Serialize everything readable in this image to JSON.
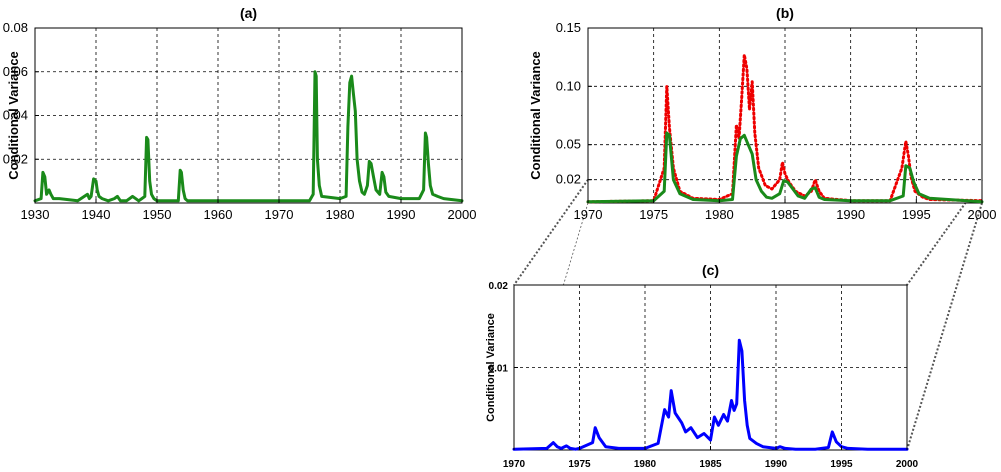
{
  "colors": {
    "green": "#1a8a1a",
    "red": "#ee0000",
    "blue": "#0000ff",
    "zoom": "#555555"
  },
  "chart_data": [
    {
      "id": "a",
      "type": "line",
      "title": "(a)",
      "ylabel": "Conditional Variance",
      "xlim": [
        1930,
        2000
      ],
      "ylim": [
        0,
        0.08
      ],
      "xticks": [
        "1930",
        "1940",
        "1950",
        "1960",
        "1970",
        "1980",
        "1990",
        "2000"
      ],
      "yticks": [
        "0.02",
        "0.04",
        "0.06",
        "0.08"
      ],
      "grid": true,
      "series": [
        {
          "color": "#1a8a1a",
          "x": [
            1930,
            1931,
            1931.3,
            1931.6,
            1931.9,
            1932.3,
            1932.6,
            1933,
            1934,
            1937,
            1938.6,
            1938.9,
            1939.2,
            1939.6,
            1940,
            1940.2,
            1940.5,
            1941,
            1942,
            1943,
            1943.5,
            1944,
            1945,
            1946,
            1946.5,
            1947,
            1947.5,
            1948,
            1948.3,
            1948.5,
            1948.8,
            1949.1,
            1949.5,
            1950,
            1953.5,
            1953.8,
            1954,
            1954.3,
            1954.6,
            1955,
            1960,
            1965,
            1970,
            1975,
            1975.6,
            1975.9,
            1976.1,
            1976.3,
            1976.6,
            1977,
            1980,
            1981,
            1981.3,
            1981.6,
            1981.9,
            1982.2,
            1982.5,
            1982.8,
            1983.2,
            1983.6,
            1984,
            1984.5,
            1984.8,
            1985.1,
            1985.5,
            1985.9,
            1986.5,
            1986.9,
            1987.2,
            1987.5,
            1988,
            1990,
            1993,
            1993.7,
            1994,
            1994.2,
            1994.5,
            1994.8,
            1995.2,
            1996,
            1997,
            2000
          ],
          "y": [
            0.001,
            0.002,
            0.014,
            0.012,
            0.004,
            0.006,
            0.004,
            0.002,
            0.002,
            0.001,
            0.004,
            0.002,
            0.003,
            0.011,
            0.01,
            0.006,
            0.003,
            0.002,
            0.001,
            0.002,
            0.003,
            0.001,
            0.001,
            0.003,
            0.002,
            0.001,
            0.002,
            0.003,
            0.03,
            0.029,
            0.01,
            0.004,
            0.002,
            0.001,
            0.001,
            0.015,
            0.014,
            0.006,
            0.002,
            0.001,
            0.001,
            0.001,
            0.001,
            0.001,
            0.004,
            0.06,
            0.058,
            0.02,
            0.008,
            0.003,
            0.002,
            0.003,
            0.035,
            0.055,
            0.058,
            0.05,
            0.042,
            0.02,
            0.01,
            0.005,
            0.004,
            0.008,
            0.019,
            0.018,
            0.012,
            0.006,
            0.004,
            0.014,
            0.012,
            0.005,
            0.003,
            0.002,
            0.002,
            0.006,
            0.032,
            0.03,
            0.018,
            0.008,
            0.004,
            0.003,
            0.002,
            0.001
          ]
        }
      ]
    },
    {
      "id": "b",
      "type": "line",
      "title": "(b)",
      "ylabel": "Conditional Variance",
      "xlim": [
        1970,
        2000
      ],
      "ylim": [
        0,
        0.15
      ],
      "xticks": [
        "1970",
        "1975",
        "1980",
        "1985",
        "1990",
        "1995",
        "2000"
      ],
      "yticks": [
        "0.02",
        "0.05",
        "0.10",
        "0.15"
      ],
      "grid": true,
      "series": [
        {
          "color": "#ee0000",
          "style": "dotted",
          "x": [
            1970,
            1975,
            1975.8,
            1976,
            1976.2,
            1976.5,
            1977,
            1978,
            1980,
            1981,
            1981.3,
            1981.5,
            1981.7,
            1981.9,
            1982.1,
            1982.3,
            1982.5,
            1982.7,
            1983,
            1983.5,
            1984,
            1984.6,
            1984.8,
            1985,
            1985.3,
            1985.8,
            1986.5,
            1987,
            1987.3,
            1987.6,
            1988,
            1990,
            1993,
            1993.9,
            1994.2,
            1994.4,
            1994.6,
            1994.9,
            1995.5,
            1996,
            2000
          ],
          "y": [
            0.001,
            0.002,
            0.03,
            0.1,
            0.065,
            0.03,
            0.01,
            0.004,
            0.003,
            0.008,
            0.067,
            0.055,
            0.09,
            0.127,
            0.115,
            0.08,
            0.104,
            0.06,
            0.03,
            0.015,
            0.012,
            0.02,
            0.035,
            0.025,
            0.018,
            0.01,
            0.006,
            0.01,
            0.02,
            0.01,
            0.004,
            0.002,
            0.002,
            0.03,
            0.053,
            0.04,
            0.022,
            0.01,
            0.005,
            0.003,
            0.002
          ]
        },
        {
          "color": "#1a8a1a",
          "style": "solid",
          "x": [
            1970,
            1975,
            1975.8,
            1976,
            1976.2,
            1976.5,
            1977,
            1978,
            1980,
            1981,
            1981.3,
            1981.6,
            1981.9,
            1982.2,
            1982.5,
            1982.8,
            1983.2,
            1983.6,
            1984,
            1984.6,
            1984.9,
            1985.2,
            1985.6,
            1986,
            1986.5,
            1987,
            1987.3,
            1987.6,
            1988,
            1990,
            1993,
            1994,
            1994.2,
            1994.5,
            1994.8,
            1995.2,
            1996,
            2000
          ],
          "y": [
            0.001,
            0.002,
            0.01,
            0.06,
            0.058,
            0.02,
            0.008,
            0.003,
            0.002,
            0.003,
            0.04,
            0.055,
            0.058,
            0.05,
            0.042,
            0.02,
            0.01,
            0.005,
            0.004,
            0.008,
            0.019,
            0.018,
            0.012,
            0.006,
            0.004,
            0.012,
            0.013,
            0.005,
            0.003,
            0.002,
            0.002,
            0.006,
            0.032,
            0.03,
            0.018,
            0.008,
            0.004,
            0.001
          ]
        }
      ]
    },
    {
      "id": "c",
      "type": "line",
      "title": "(c)",
      "ylabel": "Conditional Variance",
      "xlim": [
        1970,
        2000
      ],
      "ylim": [
        0,
        0.02
      ],
      "xticks": [
        "1970",
        "1975",
        "1980",
        "1985",
        "1990",
        "1995",
        "2000"
      ],
      "yticks": [
        "0.01",
        "0.02"
      ],
      "grid": true,
      "series": [
        {
          "color": "#0000ff",
          "x": [
            1970,
            1972.5,
            1973,
            1973.3,
            1973.6,
            1974,
            1974.3,
            1974.7,
            1975,
            1976,
            1976.2,
            1976.5,
            1977,
            1978,
            1980,
            1981,
            1981.5,
            1981.8,
            1982,
            1982.3,
            1982.5,
            1982.8,
            1983.1,
            1983.5,
            1984,
            1984.5,
            1985,
            1985.3,
            1985.6,
            1986,
            1986.3,
            1986.6,
            1986.8,
            1987,
            1987.2,
            1987.4,
            1987.6,
            1987.8,
            1988,
            1988.5,
            1989,
            1990,
            1990.3,
            1990.7,
            1991.5,
            1993,
            1994,
            1994.3,
            1994.6,
            1995,
            1995.5,
            1997,
            2000
          ],
          "y": [
            0.0001,
            0.0002,
            0.0009,
            0.0004,
            0.0002,
            0.0005,
            0.0002,
            0.0001,
            0.0002,
            0.0009,
            0.0027,
            0.0015,
            0.0004,
            0.0002,
            0.0002,
            0.0008,
            0.0049,
            0.004,
            0.0072,
            0.0045,
            0.004,
            0.0033,
            0.0022,
            0.0027,
            0.0015,
            0.002,
            0.0012,
            0.004,
            0.003,
            0.0043,
            0.0035,
            0.006,
            0.0048,
            0.0056,
            0.0133,
            0.012,
            0.006,
            0.003,
            0.0014,
            0.0008,
            0.0004,
            0.0002,
            0.0004,
            0.0002,
            0.0001,
            0.0001,
            0.0003,
            0.0022,
            0.001,
            0.0004,
            0.0002,
            0.0001,
            0.0001
          ]
        }
      ]
    }
  ]
}
